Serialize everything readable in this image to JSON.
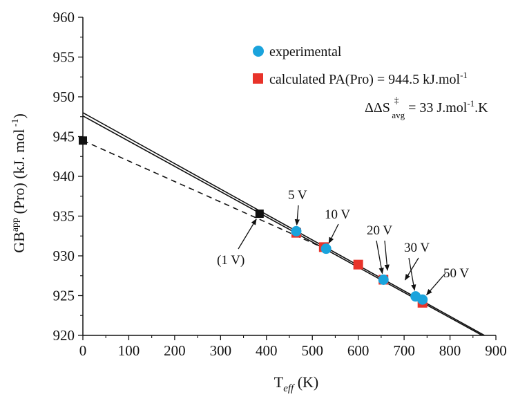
{
  "chart_data": {
    "type": "scatter",
    "title": "",
    "x_axis": {
      "label_main": "T",
      "label_sub": "eff",
      "label_unit": " (K)",
      "range": [
        0,
        900
      ],
      "ticks": [
        0,
        100,
        200,
        300,
        400,
        500,
        600,
        700,
        800,
        900
      ],
      "tick_labels": [
        "0",
        "100",
        "200",
        "300",
        "400",
        "500",
        "600",
        "700",
        "800",
        "900"
      ]
    },
    "y_axis": {
      "label_main": "GB",
      "label_sup": "app",
      "label_rest": " (Pro) (kJ. mol",
      "label_sup2": " -1",
      "label_end": ")",
      "range": [
        920,
        960
      ],
      "ticks": [
        920,
        925,
        930,
        935,
        940,
        945,
        950,
        955,
        960
      ],
      "tick_labels": [
        "920",
        "925",
        "930",
        "935",
        "940",
        "945",
        "950",
        "955",
        "960"
      ]
    },
    "series": [
      {
        "name": "experimental",
        "marker": "circle",
        "color": "#1aa3dc",
        "points": [
          {
            "x": 465,
            "y": 933.1
          },
          {
            "x": 530,
            "y": 930.9
          },
          {
            "x": 655,
            "y": 927.0
          },
          {
            "x": 725,
            "y": 924.9
          },
          {
            "x": 740,
            "y": 924.5
          }
        ]
      },
      {
        "name": "calculated PA(Pro) = 944.5 kJ.mol",
        "name_sup": "-1",
        "marker": "square",
        "color": "#e8332a",
        "points": [
          {
            "x": 465,
            "y": 932.9
          },
          {
            "x": 525,
            "y": 931.1
          },
          {
            "x": 600,
            "y": 928.9
          },
          {
            "x": 655,
            "y": 927.0
          },
          {
            "x": 740,
            "y": 924.1
          }
        ]
      }
    ],
    "black_points": [
      {
        "x": 0,
        "y": 944.5
      },
      {
        "x": 385,
        "y": 935.3
      }
    ],
    "fit_lines": [
      {
        "style": "solid",
        "x0": 0,
        "y0": 947.6,
        "x1": 870,
        "y1": 920.0
      },
      {
        "style": "solid",
        "x0": 0,
        "y0": 948.0,
        "x1": 875,
        "y1": 920.0
      },
      {
        "style": "dashed",
        "x0": 0,
        "y0": 944.5,
        "x1": 540,
        "y1": 930.6
      }
    ],
    "entropy_note": {
      "prefix": "ΔΔS",
      "sup": "‡",
      "sub": "avg",
      "suffix": " = 33 J.mol",
      "sup2": "-1",
      "suffix2": ".K"
    },
    "annotations": [
      {
        "text": "5 V",
        "targets": [
          {
            "x": 465,
            "y": 933.1
          }
        ]
      },
      {
        "text": "10 V",
        "targets": [
          {
            "x": 530,
            "y": 930.9
          }
        ]
      },
      {
        "text": "20 V",
        "targets": [
          {
            "x": 655,
            "y": 927.0
          }
        ]
      },
      {
        "text": "30 V",
        "targets": [
          {
            "x": 725,
            "y": 924.9
          }
        ]
      },
      {
        "text": "50 V",
        "targets": [
          {
            "x": 740,
            "y": 924.5
          }
        ]
      },
      {
        "text": "(1 V)",
        "targets": [
          {
            "x": 385,
            "y": 935.3
          }
        ]
      }
    ],
    "grid": false,
    "legend_position": "top-right"
  }
}
